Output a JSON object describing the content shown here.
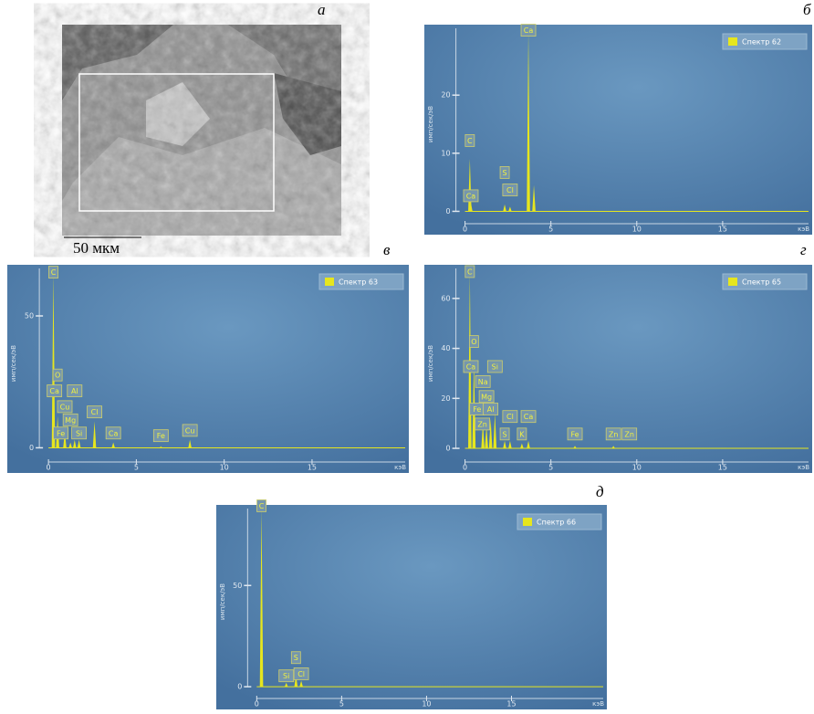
{
  "image_panel": {
    "label": "а",
    "scale_bar": "50 мкм"
  },
  "chart_data": [
    {
      "type": "spectrum",
      "panel_label": "б",
      "ylabel": "имп/сек/эВ",
      "xlabel": "кэВ",
      "color": "#e6e61e",
      "xlim": [
        -1.2,
        20
      ],
      "ylim": [
        -1.5,
        31.5
      ],
      "xticks": [
        0,
        5,
        10,
        15
      ],
      "yticks": [
        0,
        10,
        20
      ],
      "series": [
        {
          "name": "Спектр 62",
          "color": "#e6e61e",
          "x": [
            0.28,
            0.34,
            2.31,
            2.62,
            3.69,
            4.01
          ],
          "values": [
            9,
            1.5,
            1.2,
            0.8,
            31,
            4.5
          ]
        }
      ],
      "annotations": [
        {
          "text": "C",
          "x": 0.28,
          "y": 11
        },
        {
          "text": "Ca",
          "x": 0.34,
          "y": 1.5
        },
        {
          "text": "S",
          "x": 2.31,
          "y": 5.5
        },
        {
          "text": "Cl",
          "x": 2.62,
          "y": 2.5
        },
        {
          "text": "Ca",
          "x": 3.69,
          "y": 30
        }
      ]
    },
    {
      "type": "spectrum",
      "panel_label": "в",
      "ylabel": "имп/сек/эВ",
      "xlabel": "кэВ",
      "color": "#e6e61e",
      "xlim": [
        -1.2,
        20.3
      ],
      "ylim": [
        -4,
        68
      ],
      "xticks": [
        0,
        5,
        10,
        15
      ],
      "yticks": [
        0,
        50
      ],
      "series": [
        {
          "name": "Спектр 63",
          "color": "#e6e61e",
          "x": [
            0.28,
            0.52,
            0.93,
            1.25,
            1.49,
            1.74,
            2.62,
            3.69,
            6.4,
            8.05
          ],
          "values": [
            66,
            12,
            6,
            2,
            3,
            3,
            10,
            2,
            0.5,
            3
          ]
        }
      ],
      "annotations": [
        {
          "text": "C",
          "x": 0.28,
          "y": 64
        },
        {
          "text": "O",
          "x": 0.52,
          "y": 25
        },
        {
          "text": "Ca",
          "x": 0.34,
          "y": 19
        },
        {
          "text": "Cu",
          "x": 0.93,
          "y": 13
        },
        {
          "text": "Al",
          "x": 1.49,
          "y": 19
        },
        {
          "text": "Mg",
          "x": 1.25,
          "y": 8
        },
        {
          "text": "Cl",
          "x": 2.62,
          "y": 11
        },
        {
          "text": "Fe",
          "x": 0.7,
          "y": 3
        },
        {
          "text": "Si",
          "x": 1.74,
          "y": 3
        },
        {
          "text": "Ca",
          "x": 3.69,
          "y": 3
        },
        {
          "text": "Fe",
          "x": 6.4,
          "y": 2
        },
        {
          "text": "Cu",
          "x": 8.05,
          "y": 4
        }
      ]
    },
    {
      "type": "spectrum",
      "panel_label": "г",
      "ylabel": "имп/сек/эВ",
      "xlabel": "кэВ",
      "color": "#e6e61e",
      "xlim": [
        -1.2,
        20
      ],
      "ylim": [
        -4,
        72
      ],
      "xticks": [
        0,
        5,
        10,
        15
      ],
      "yticks": [
        0,
        20,
        40,
        60
      ],
      "series": [
        {
          "name": "Спектр 65",
          "color": "#e6e61e",
          "x": [
            0.28,
            0.52,
            1.04,
            1.25,
            1.49,
            1.74,
            2.31,
            2.62,
            3.31,
            3.69,
            6.4,
            8.64
          ],
          "values": [
            70,
            35,
            10,
            9,
            12,
            14,
            3,
            3,
            2,
            3,
            1,
            1
          ]
        }
      ],
      "annotations": [
        {
          "text": "C",
          "x": 0.28,
          "y": 68
        },
        {
          "text": "O",
          "x": 0.52,
          "y": 40
        },
        {
          "text": "Ca",
          "x": 0.34,
          "y": 30
        },
        {
          "text": "Si",
          "x": 1.74,
          "y": 30
        },
        {
          "text": "Na",
          "x": 1.04,
          "y": 24
        },
        {
          "text": "Mg",
          "x": 1.25,
          "y": 18
        },
        {
          "text": "Fe",
          "x": 0.7,
          "y": 13
        },
        {
          "text": "Al",
          "x": 1.49,
          "y": 13
        },
        {
          "text": "Zn",
          "x": 1.01,
          "y": 7
        },
        {
          "text": "S",
          "x": 2.31,
          "y": 3
        },
        {
          "text": "Cl",
          "x": 2.62,
          "y": 10
        },
        {
          "text": "Ca",
          "x": 3.69,
          "y": 10
        },
        {
          "text": "K",
          "x": 3.31,
          "y": 3
        },
        {
          "text": "Fe",
          "x": 6.4,
          "y": 3
        },
        {
          "text": "Zn",
          "x": 8.64,
          "y": 3
        },
        {
          "text": "Zn",
          "x": 9.57,
          "y": 3
        }
      ]
    },
    {
      "type": "spectrum",
      "panel_label": "д",
      "ylabel": "имп/сек/эВ",
      "xlabel": "кэВ",
      "color": "#e6e61e",
      "xlim": [
        -1.2,
        20.4
      ],
      "ylim": [
        -4,
        88
      ],
      "xticks": [
        0,
        5,
        10,
        15
      ],
      "yticks": [
        0,
        50
      ],
      "series": [
        {
          "name": "Спектр 66",
          "color": "#e6e61e",
          "x": [
            0.28,
            1.74,
            2.31,
            2.62
          ],
          "values": [
            88,
            2,
            6,
            3
          ]
        }
      ],
      "annotations": [
        {
          "text": "C",
          "x": 0.28,
          "y": 86
        },
        {
          "text": "S",
          "x": 2.31,
          "y": 11
        },
        {
          "text": "Si",
          "x": 1.74,
          "y": 2
        },
        {
          "text": "Cl",
          "x": 2.62,
          "y": 3
        }
      ]
    }
  ]
}
